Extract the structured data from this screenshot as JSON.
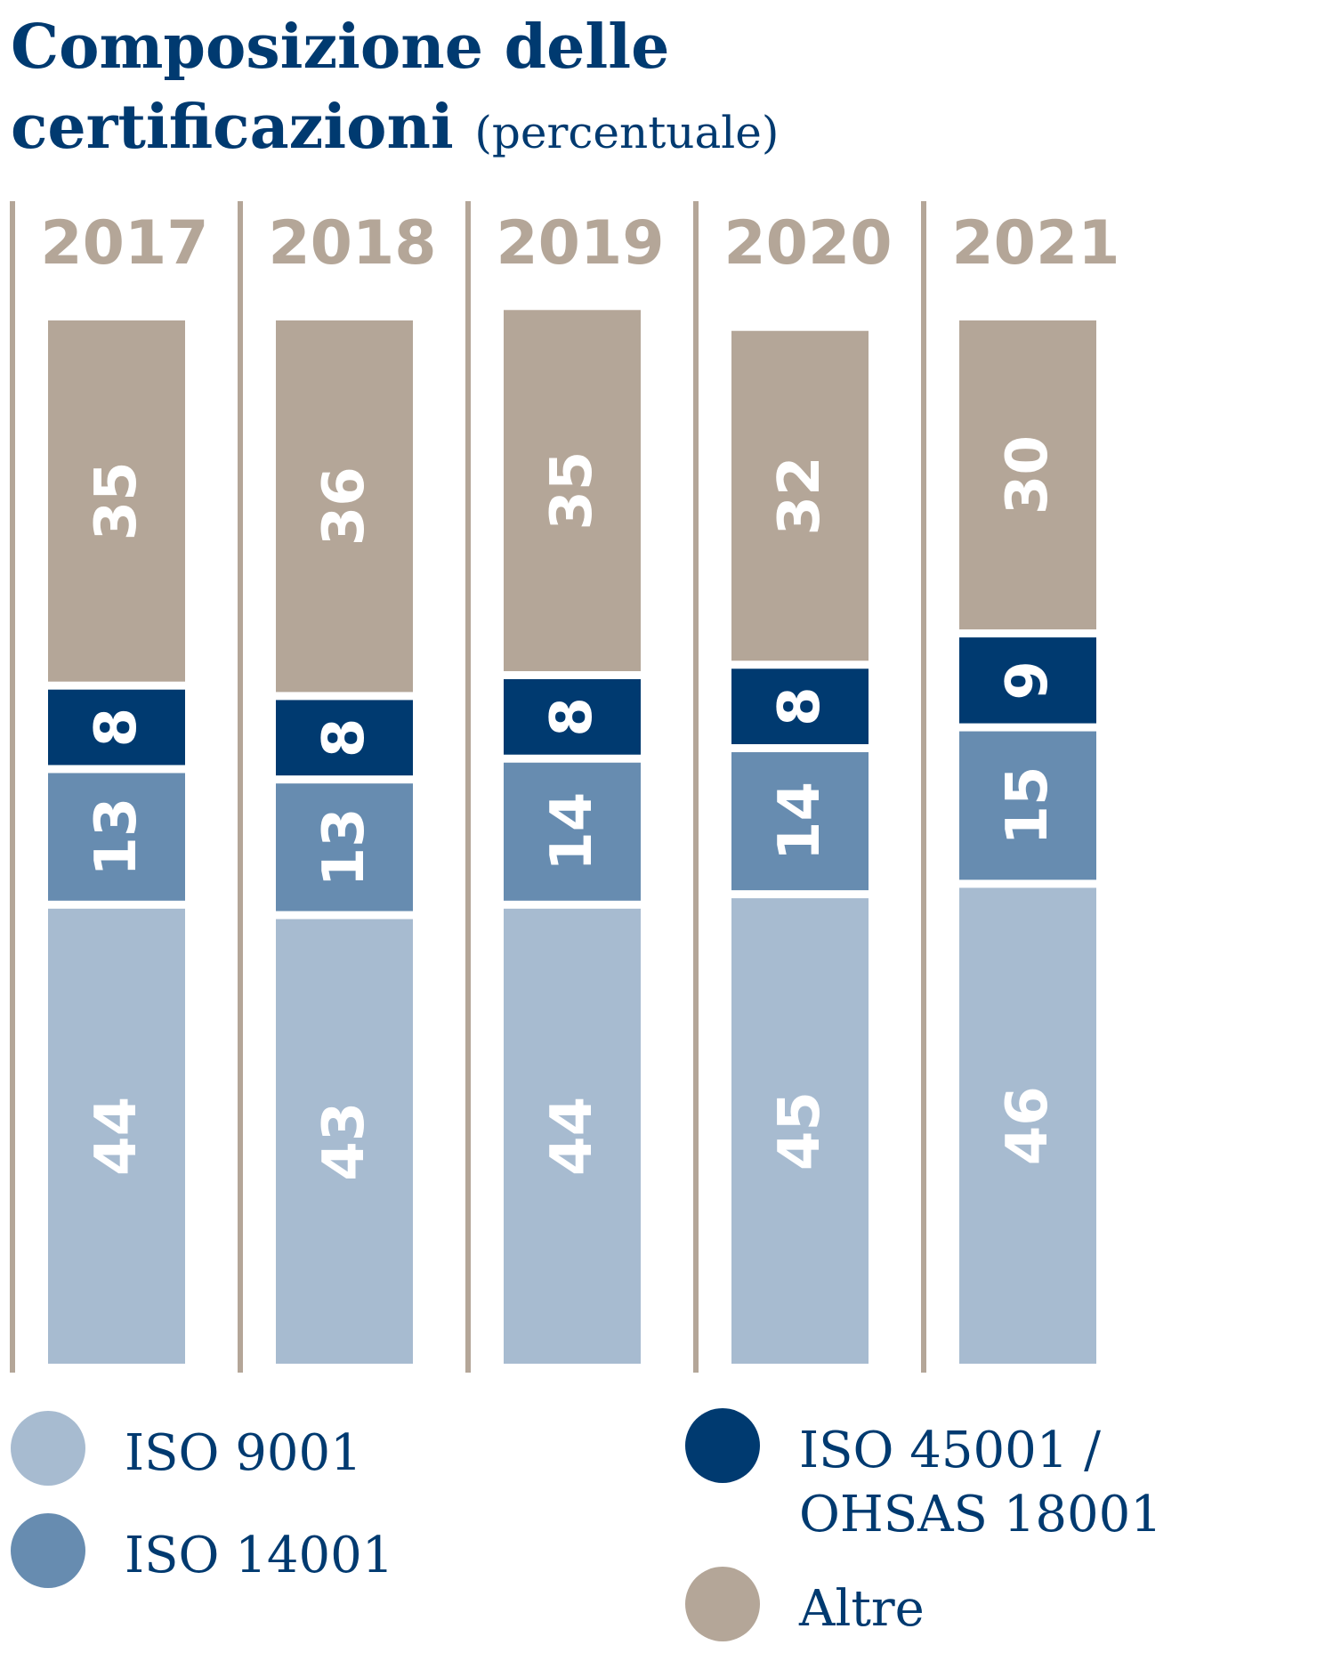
{
  "title": "Composizione delle certificazioni",
  "subtitle": "(percentuale)",
  "colors": {
    "iso9001": "#a7bbd0",
    "iso14001": "#678cb0",
    "iso45001": "#003a70",
    "altre": "#b4a698",
    "text_dark": "#003a70",
    "year_color": "#b4a698"
  },
  "legend": [
    {
      "label": "ISO 9001",
      "color": "#a7bbd0"
    },
    {
      "label": "ISO 14001",
      "color": "#678cb0"
    },
    {
      "label": "ISO 45001 /\nOHSAS 18001",
      "color": "#003a70"
    },
    {
      "label": "Altre",
      "color": "#b4a698"
    }
  ],
  "chart_data": {
    "type": "bar",
    "stacked": true,
    "unit": "percentuale",
    "categories": [
      "2017",
      "2018",
      "2019",
      "2020",
      "2021"
    ],
    "series": [
      {
        "name": "ISO 9001",
        "values": [
          44,
          43,
          44,
          45,
          46
        ],
        "color": "#a7bbd0"
      },
      {
        "name": "ISO 14001",
        "values": [
          13,
          13,
          14,
          14,
          15
        ],
        "color": "#678cb0"
      },
      {
        "name": "ISO 45001 / OHSAS 18001",
        "values": [
          8,
          8,
          8,
          8,
          9
        ],
        "color": "#003a70"
      },
      {
        "name": "Altre",
        "values": [
          35,
          36,
          35,
          32,
          30
        ],
        "color": "#b4a698"
      }
    ],
    "ylim": [
      0,
      100
    ]
  }
}
